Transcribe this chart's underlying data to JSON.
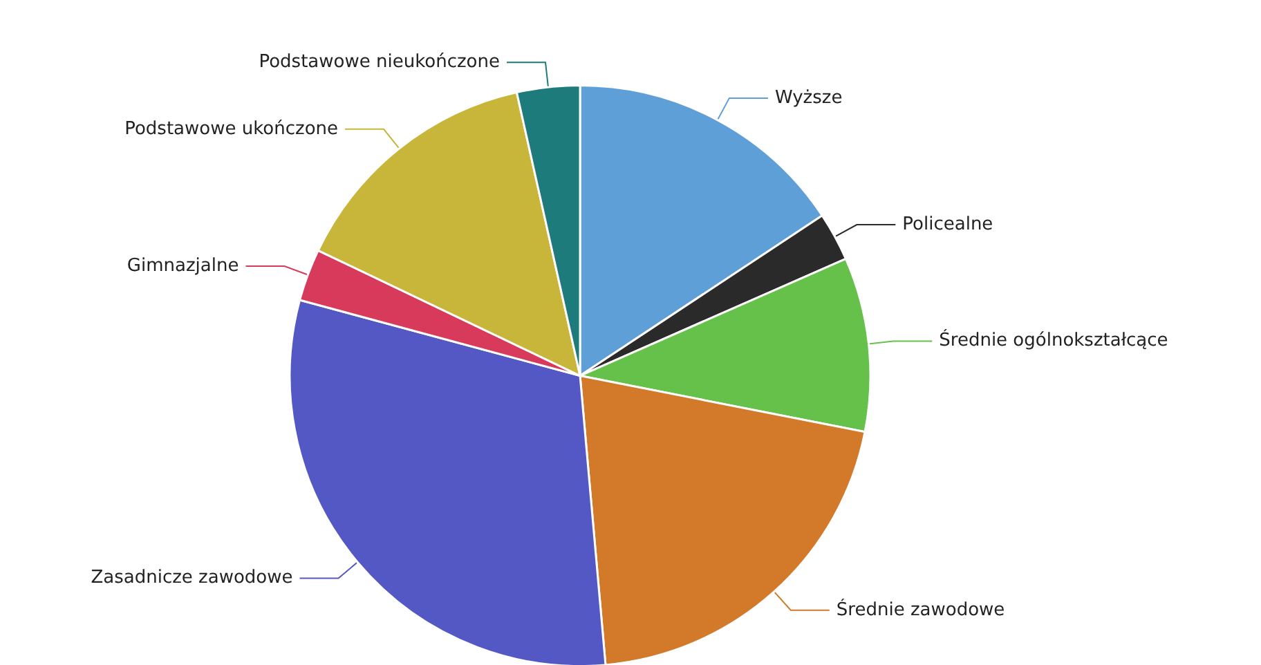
{
  "chart_data": {
    "type": "pie",
    "categories": [
      "Wyższe",
      "Policealne",
      "Średnie ogólnokształcące",
      "Średnie zawodowe",
      "Zasadnicze zawodowe",
      "Gimnazjalne",
      "Podstawowe ukończone",
      "Podstawowe nieukończone"
    ],
    "values": [
      15.7,
      2.7,
      9.7,
      20.5,
      30.6,
      2.9,
      14.4,
      3.5
    ],
    "colors": [
      "#5f9fd8",
      "#2a2a2a",
      "#66c14a",
      "#d27a2a",
      "#5458c4",
      "#d83a5c",
      "#c8b63a",
      "#1e7b7b"
    ],
    "legend": false
  }
}
